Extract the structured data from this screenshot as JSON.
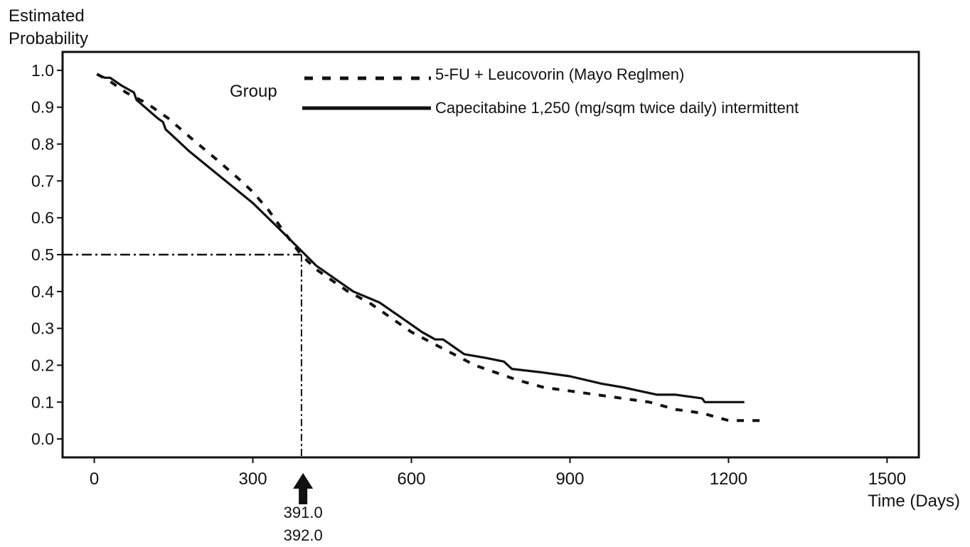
{
  "chart_data": {
    "type": "line",
    "title": "",
    "ylabel": "Estimated Probability",
    "xlabel": "Time (Days)",
    "xlim": [
      -60,
      1560
    ],
    "ylim": [
      -0.05,
      1.05
    ],
    "x_ticks": [
      0,
      300,
      600,
      900,
      1200,
      1500
    ],
    "x_tick_labels": [
      "0",
      "300",
      "600",
      "900",
      "1200",
      "1500"
    ],
    "y_ticks": [
      0.0,
      0.1,
      0.2,
      0.3,
      0.4,
      0.5,
      0.6,
      0.7,
      0.8,
      0.9,
      1.0
    ],
    "y_tick_labels": [
      "0.0",
      "0.1",
      "0.2",
      "0.3",
      "0.4",
      "0.5",
      "0.6",
      "0.7",
      "0.8",
      "0.9",
      "1.0"
    ],
    "grid": false,
    "legend": {
      "title": "Group",
      "placement": "top-center"
    },
    "series": [
      {
        "name": "5-FU + Leucovorin (Mayo Reglmen)",
        "style": "dotted",
        "color": "#111111",
        "x": [
          5,
          30,
          60,
          100,
          140,
          180,
          230,
          270,
          300,
          330,
          360,
          391,
          420,
          450,
          480,
          520,
          560,
          600,
          640,
          680,
          720,
          760,
          800,
          850,
          900,
          950,
          1000,
          1050,
          1100,
          1150,
          1200,
          1260
        ],
        "y": [
          0.99,
          0.97,
          0.94,
          0.91,
          0.87,
          0.82,
          0.76,
          0.71,
          0.67,
          0.62,
          0.56,
          0.5,
          0.46,
          0.43,
          0.4,
          0.37,
          0.33,
          0.29,
          0.26,
          0.23,
          0.2,
          0.18,
          0.16,
          0.14,
          0.13,
          0.12,
          0.11,
          0.1,
          0.08,
          0.07,
          0.05,
          0.05
        ]
      },
      {
        "name": "Capecitabine 1,250 (mg/sqm twice daily) intermittent",
        "style": "solid",
        "color": "#111111",
        "x": [
          5,
          20,
          30,
          50,
          75,
          80,
          120,
          130,
          135,
          180,
          240,
          300,
          350,
          392,
          420,
          460,
          490,
          540,
          580,
          620,
          645,
          660,
          700,
          740,
          775,
          790,
          850,
          900,
          960,
          1000,
          1065,
          1100,
          1150,
          1155,
          1230
        ],
        "y": [
          0.99,
          0.98,
          0.98,
          0.96,
          0.94,
          0.92,
          0.87,
          0.86,
          0.84,
          0.78,
          0.71,
          0.64,
          0.57,
          0.51,
          0.47,
          0.43,
          0.4,
          0.37,
          0.33,
          0.29,
          0.27,
          0.27,
          0.23,
          0.22,
          0.21,
          0.19,
          0.18,
          0.17,
          0.15,
          0.14,
          0.12,
          0.12,
          0.11,
          0.1,
          0.1
        ]
      }
    ],
    "annotations": {
      "median_y": 0.5,
      "median_x": 392,
      "arrow_x": 395,
      "median_labels": [
        "391.0",
        "392.0"
      ]
    }
  }
}
